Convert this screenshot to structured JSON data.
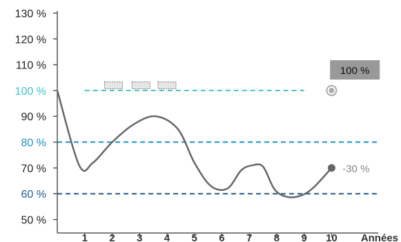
{
  "chart_data": {
    "type": "line",
    "title": "",
    "xlabel": "Années",
    "ylabel": "",
    "xlim": [
      0,
      11.7
    ],
    "ylim": [
      48,
      134
    ],
    "y_ticks": [
      {
        "value": 130,
        "label": "130 %",
        "color": "#222222"
      },
      {
        "value": 120,
        "label": "120 %",
        "color": "#222222"
      },
      {
        "value": 110,
        "label": "110 %",
        "color": "#222222"
      },
      {
        "value": 100,
        "label": "100 %",
        "color": "#41c4c4"
      },
      {
        "value": 90,
        "label": "90 %",
        "color": "#222222"
      },
      {
        "value": 80,
        "label": "80 %",
        "color": "#1a8fc0"
      },
      {
        "value": 70,
        "label": "70 %",
        "color": "#222222"
      },
      {
        "value": 60,
        "label": "60 %",
        "color": "#1d5c8e"
      },
      {
        "value": 50,
        "label": "50 %",
        "color": "#222222"
      }
    ],
    "x_ticks": [
      {
        "value": 1,
        "label": "1"
      },
      {
        "value": 2,
        "label": "2"
      },
      {
        "value": 3,
        "label": "3"
      },
      {
        "value": 4,
        "label": "4"
      },
      {
        "value": 5,
        "label": "5"
      },
      {
        "value": 6,
        "label": "6"
      },
      {
        "value": 7,
        "label": "7"
      },
      {
        "value": 8,
        "label": "8"
      },
      {
        "value": 9,
        "label": "9"
      },
      {
        "value": 10,
        "label": "10"
      }
    ],
    "reference_lines": [
      {
        "value": 100,
        "x_start": 1,
        "x_end": 9,
        "color": "#41c4c4"
      },
      {
        "value": 80,
        "x_start": 0,
        "x_end": 11.7,
        "color": "#1a8fc0"
      },
      {
        "value": 60,
        "x_start": 0,
        "x_end": 11.7,
        "color": "#1d5c8e"
      }
    ],
    "series": [
      {
        "color": "#666666",
        "x": [
          0,
          0.8,
          1.3,
          2,
          2.8,
          3.6,
          4.4,
          5,
          5.6,
          6.2,
          6.7,
          7.1,
          7.5,
          7.9,
          8.3,
          8.8,
          9.3,
          10
        ],
        "y": [
          100,
          71,
          72,
          80,
          87,
          90,
          85,
          72,
          63,
          62,
          69,
          71,
          70.5,
          62,
          59,
          59,
          62,
          70
        ]
      }
    ],
    "markers": [
      {
        "x": 10,
        "y": 70,
        "type": "filled",
        "color": "#666666"
      },
      {
        "x": 10,
        "y": 100,
        "type": "ring",
        "color": "#aaaaaa"
      }
    ],
    "annotations": [
      {
        "text": "100 %",
        "x": 10.9,
        "y": 108,
        "style": "boxed"
      },
      {
        "text": "-30 %",
        "x": 10.8,
        "y": 70,
        "style": "plain",
        "color": "#888888"
      }
    ],
    "stamps": [
      {
        "x": 2.05,
        "y": 102
      },
      {
        "x": 3.05,
        "y": 102
      },
      {
        "x": 4.0,
        "y": 102
      }
    ],
    "colors": {
      "axis": "#555555",
      "annotation_box": "#999999"
    }
  }
}
